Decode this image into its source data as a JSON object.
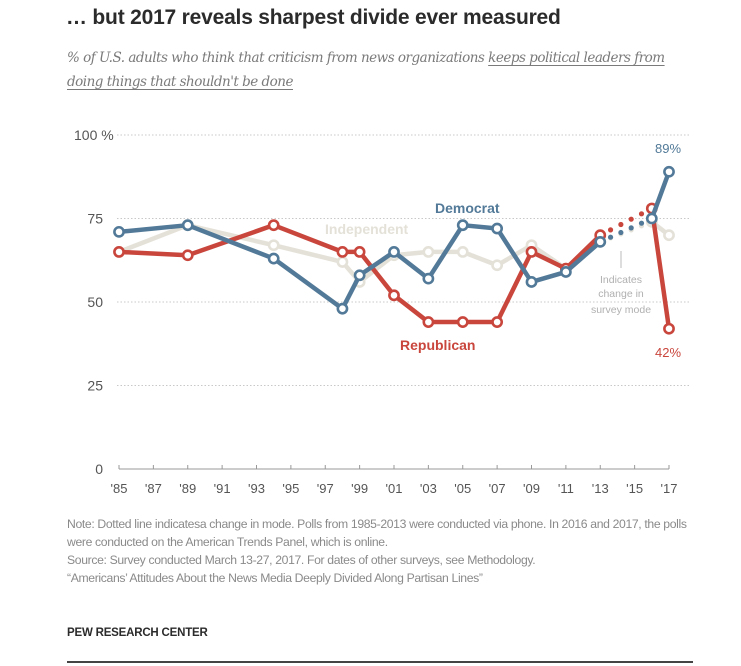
{
  "header": {
    "title": "… but 2017 reveals sharpest divide ever measured",
    "subtitle_plain": "% of U.S. adults who think that criticism from news organizations ",
    "subtitle_underlined": "keeps political leaders from doing things that shouldn't be done"
  },
  "chart_data": {
    "type": "line",
    "title": "… but 2017 reveals sharpest divide ever measured",
    "subtitle": "% of U.S. adults who think that criticism from news organizations keeps political leaders from doing things that shouldn't be done",
    "xlabel": "",
    "ylabel": "",
    "xlim": [
      1985,
      2017
    ],
    "ylim": [
      0,
      100
    ],
    "grid": true,
    "y_ticks": [
      {
        "value": 0,
        "label": "0"
      },
      {
        "value": 25,
        "label": "25"
      },
      {
        "value": 50,
        "label": "50"
      },
      {
        "value": 75,
        "label": "75"
      },
      {
        "value": 100,
        "label": "100 %"
      }
    ],
    "x_ticks": [
      {
        "value": 1985,
        "label": "'85"
      },
      {
        "value": 1987,
        "label": "'87"
      },
      {
        "value": 1989,
        "label": "'89"
      },
      {
        "value": 1991,
        "label": "'91"
      },
      {
        "value": 1993,
        "label": "'93"
      },
      {
        "value": 1995,
        "label": "'95"
      },
      {
        "value": 1997,
        "label": "'97"
      },
      {
        "value": 1999,
        "label": "'99"
      },
      {
        "value": 2001,
        "label": "'01"
      },
      {
        "value": 2003,
        "label": "'03"
      },
      {
        "value": 2005,
        "label": "'05"
      },
      {
        "value": 2007,
        "label": "'07"
      },
      {
        "value": 2009,
        "label": "'09"
      },
      {
        "value": 2011,
        "label": "'11"
      },
      {
        "value": 2013,
        "label": "'13"
      },
      {
        "value": 2015,
        "label": "'15"
      },
      {
        "value": 2017,
        "label": "'17"
      }
    ],
    "x": [
      1985,
      1989,
      1994,
      1998,
      1999,
      2001,
      2003,
      2005,
      2007,
      2009,
      2011,
      2013,
      2016,
      2017
    ],
    "mode_change_after": 2013,
    "series": [
      {
        "name": "Independent",
        "color": "#e4e1d8",
        "values": [
          65,
          73,
          67,
          62,
          56,
          64,
          65,
          65,
          61,
          67,
          60,
          68,
          74,
          70
        ]
      },
      {
        "name": "Republican",
        "color": "#c9463d",
        "values": [
          65,
          64,
          73,
          65,
          65,
          52,
          44,
          44,
          44,
          65,
          60,
          70,
          78,
          42
        ]
      },
      {
        "name": "Democrat",
        "color": "#527a98",
        "values": [
          71,
          73,
          63,
          48,
          58,
          65,
          57,
          73,
          72,
          56,
          59,
          68,
          75,
          89
        ]
      }
    ],
    "series_labels": [
      {
        "series": "Democrat",
        "text": "Democrat"
      },
      {
        "series": "Independent",
        "text": "Independent"
      },
      {
        "series": "Republican",
        "text": "Republican"
      }
    ],
    "data_labels": [
      {
        "series": "Democrat",
        "x": 2017,
        "text": "89%"
      },
      {
        "series": "Republican",
        "x": 2017,
        "text": "42%"
      }
    ],
    "annotations": [
      {
        "text_lines": [
          "Indicates",
          "change in",
          "survey mode"
        ]
      }
    ]
  },
  "footer": {
    "note": "Note: Dotted line indicatesa change in mode. Polls from 1985-2013 were conducted via phone. In 2016 and 2017, the polls were conducted on the American Trends Panel, which is online.",
    "source": "Source: Survey conducted March 13-27, 2017. For dates of other surveys, see Methodology.",
    "report": "“Americans’ Attitudes About the News Media Deeply Divided Along Partisan Lines”",
    "brand": "PEW RESEARCH CENTER"
  }
}
